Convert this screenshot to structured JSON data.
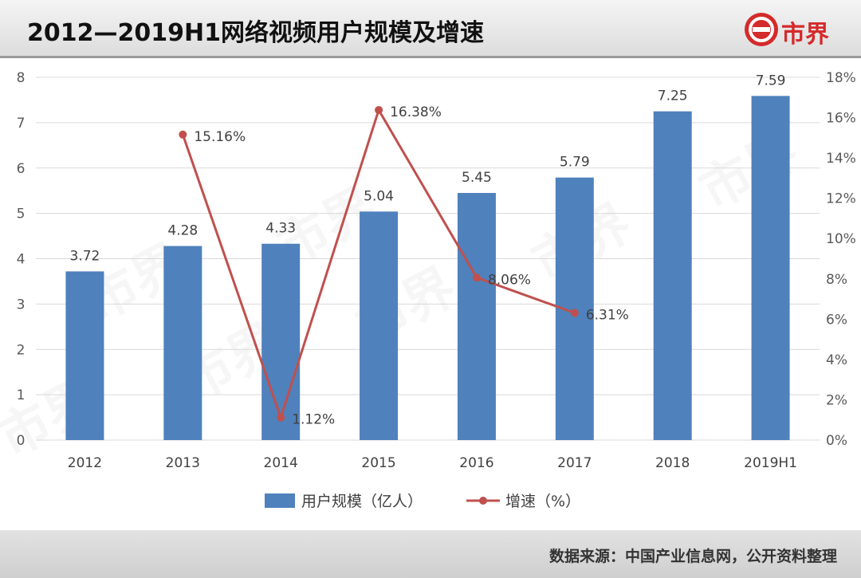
{
  "header": {
    "title": "2012—2019H1网络视频用户规模及增速",
    "logo_text": "市界"
  },
  "footer": {
    "source": "数据来源：中国产业信息网，公开资料整理"
  },
  "watermark": "市界",
  "colors": {
    "bar": "#4f81bd",
    "line": "#c0504d",
    "logo": "#d42b2b"
  },
  "chart_data": {
    "type": "bar",
    "title": "2012—2019H1网络视频用户规模及增速",
    "categories": [
      "2012",
      "2013",
      "2014",
      "2015",
      "2016",
      "2017",
      "2018",
      "2019H1"
    ],
    "series": [
      {
        "name": "用户规模（亿人）",
        "type": "bar",
        "axis": "left",
        "values": [
          3.72,
          4.28,
          4.33,
          5.04,
          5.45,
          5.79,
          7.25,
          7.59
        ],
        "labels": [
          "3.72",
          "4.28",
          "4.33",
          "5.04",
          "5.45",
          "5.79",
          "7.25",
          "7.59"
        ]
      },
      {
        "name": "增速（%）",
        "type": "line",
        "axis": "right",
        "values": [
          null,
          15.16,
          1.12,
          16.38,
          8.06,
          6.31,
          null,
          null
        ],
        "labels": [
          "",
          "15.16%",
          "1.12%",
          "16.38%",
          "8.06%",
          "6.31%",
          "",
          ""
        ]
      }
    ],
    "y_left": {
      "min": 0,
      "max": 8,
      "ticks": [
        "0",
        "1",
        "2",
        "3",
        "4",
        "5",
        "6",
        "7",
        "8"
      ]
    },
    "y_right": {
      "min": 0,
      "max": 18,
      "ticks": [
        "0%",
        "2%",
        "4%",
        "6%",
        "8%",
        "10%",
        "12%",
        "14%",
        "16%",
        "18%"
      ]
    },
    "legend": {
      "position": "bottom",
      "items": [
        "用户规模（亿人）",
        "增速（%）"
      ]
    },
    "grid": true
  }
}
